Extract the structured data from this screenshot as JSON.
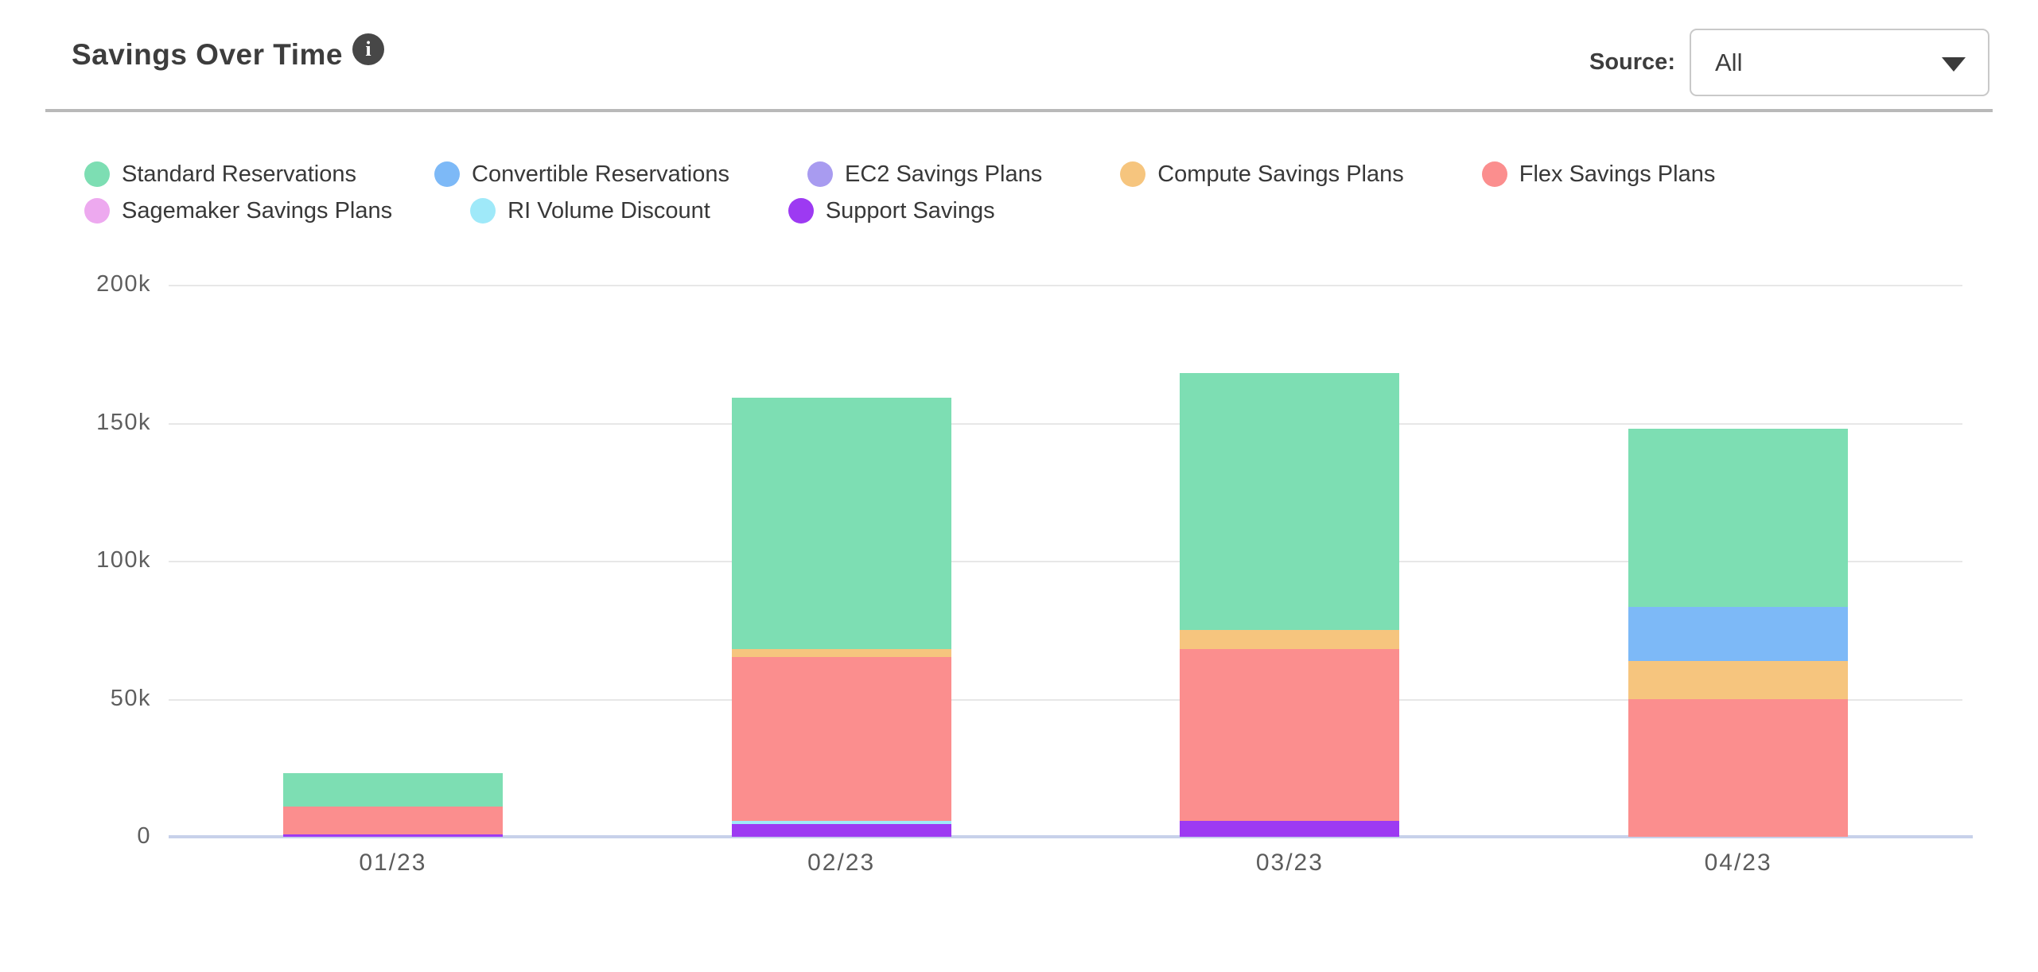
{
  "header": {
    "title": "Savings Over Time",
    "info_icon_glyph": "i",
    "source_label": "Source:",
    "source_value": "All"
  },
  "chart_data": {
    "type": "bar",
    "stacked": true,
    "title": "Savings Over Time",
    "unit": "k",
    "categories": [
      "01/23",
      "02/23",
      "03/23",
      "04/23"
    ],
    "series": [
      {
        "name": "Standard Reservations",
        "color": "#7ddeb3",
        "values": [
          12.2,
          91.1,
          93.3,
          64.7
        ]
      },
      {
        "name": "Convertible Reservations",
        "color": "#7db9f7",
        "values": [
          0,
          0,
          0,
          19.5
        ]
      },
      {
        "name": "EC2 Savings Plans",
        "color": "#a89bf0",
        "values": [
          0,
          0,
          0,
          0
        ]
      },
      {
        "name": "Compute Savings Plans",
        "color": "#f6c57e",
        "values": [
          0,
          2.9,
          6.7,
          13.8
        ]
      },
      {
        "name": "Flex Savings Plans",
        "color": "#fb8e8e",
        "values": [
          10.0,
          59.2,
          62.4,
          49.9
        ]
      },
      {
        "name": "Sagemaker Savings Plans",
        "color": "#eda9ef",
        "values": [
          0,
          0,
          0,
          0
        ]
      },
      {
        "name": "RI Volume Discount",
        "color": "#9fe9f9",
        "values": [
          0,
          1.2,
          0,
          0
        ]
      },
      {
        "name": "Support Savings",
        "color": "#9d3af2",
        "values": [
          1.0,
          4.7,
          5.7,
          0
        ]
      }
    ],
    "stack_order_bottom_to_top": [
      "Support Savings",
      "RI Volume Discount",
      "Sagemaker Savings Plans",
      "Flex Savings Plans",
      "Compute Savings Plans",
      "EC2 Savings Plans",
      "Convertible Reservations",
      "Standard Reservations"
    ],
    "totals": [
      23.2,
      159.1,
      168.1,
      147.9
    ],
    "y_ticks": [
      "200k",
      "150k",
      "100k",
      "50k",
      "0"
    ],
    "ylim": [
      0,
      200
    ],
    "grid": true,
    "legend_position": "top",
    "legend_rows": [
      [
        "Standard Reservations",
        "Convertible Reservations",
        "EC2 Savings Plans",
        "Compute Savings Plans",
        "Flex Savings Plans"
      ],
      [
        "Sagemaker Savings Plans",
        "RI Volume Discount",
        "Support Savings"
      ]
    ]
  }
}
